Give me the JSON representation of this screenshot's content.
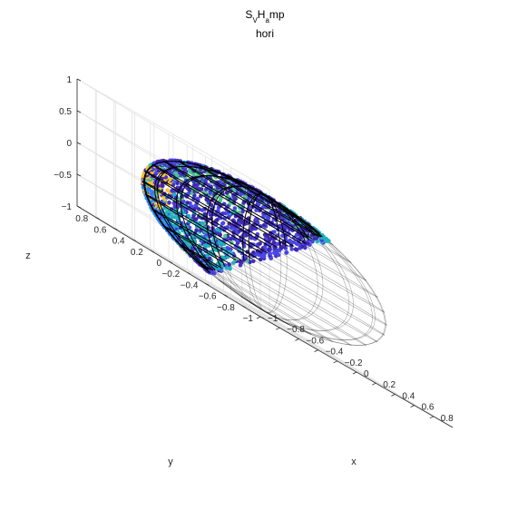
{
  "chart_data": {
    "type": "scatter",
    "title": {
      "S": "S",
      "V": "V",
      "H": "H",
      "a": "a",
      "mp": "mp"
    },
    "subtitle": "hori",
    "xlabel": "x",
    "ylabel": "y",
    "zlabel": "z",
    "xlim": [
      -1,
      1
    ],
    "ylim": [
      -1,
      1
    ],
    "zlim": [
      -1,
      1
    ],
    "x_ticks": [
      "−1",
      "−0.8",
      "−0.6",
      "−0.4",
      "−0.2",
      "0",
      "0.2",
      "0.4",
      "0.6",
      "0.8"
    ],
    "y_ticks": [
      "−1",
      "−0.8",
      "−0.6",
      "−0.4",
      "−0.2",
      "0",
      "0.2",
      "0.4",
      "0.6",
      "0.8"
    ],
    "z_ticks": [
      "−1",
      "−0.5",
      "0",
      "0.5",
      "1"
    ],
    "grid": true,
    "sphere_wireframe": true,
    "colormap": [
      "#3e26a8",
      "#4a47e8",
      "#2e87f7",
      "#1fb0c2",
      "#4bc58b",
      "#b6bd37",
      "#f7c030",
      "#f9e01c"
    ],
    "clusters": [
      {
        "dominant_color": "#f7c030",
        "center": [
          -0.62,
          0.28,
          0.05
        ]
      },
      {
        "dominant_color": "#2e87f7",
        "center": [
          -0.45,
          0.62,
          -0.35
        ]
      },
      {
        "dominant_color": "#1fb0c2",
        "center": [
          0.05,
          0.85,
          -0.45
        ]
      },
      {
        "dominant_color": "#4bc58b",
        "center": [
          -0.55,
          -0.05,
          0.55
        ]
      },
      {
        "dominant_color": "#1fb0c2",
        "center": [
          0.25,
          -0.45,
          0.85
        ]
      }
    ]
  }
}
